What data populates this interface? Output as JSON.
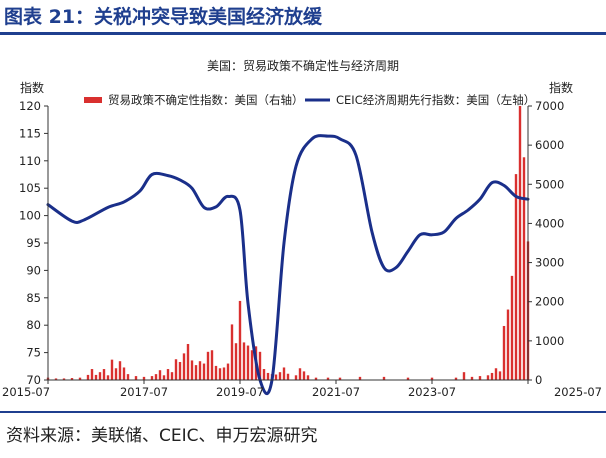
{
  "figure": {
    "title": "图表 21：关税冲突导致美国经济放缓",
    "source": "资料来源：美联储、CEIC、申万宏源研究"
  },
  "colors": {
    "title": "#1f3f8f",
    "bar": "#d9302f",
    "line": "#1a2f8a",
    "axis": "#333333"
  },
  "chart_data": {
    "type": "bar+line",
    "title": "美国：贸易政策不确定性与经济周期",
    "legend_placement": "top",
    "grid": false,
    "left_axis": {
      "label": "指数",
      "range": [
        70,
        120
      ],
      "ticks": [
        70,
        75,
        80,
        85,
        90,
        95,
        100,
        105,
        110,
        115,
        120
      ]
    },
    "right_axis": {
      "label": "指数",
      "range": [
        0,
        7000
      ],
      "ticks": [
        0,
        1000,
        2000,
        3000,
        4000,
        5000,
        6000,
        7000
      ]
    },
    "x_axis": {
      "range": [
        "2015-07",
        "2025-07"
      ],
      "ticks": [
        "2015-07",
        "2017-07",
        "2019-07",
        "2021-07",
        "2023-07",
        "2025-07"
      ]
    },
    "series": [
      {
        "name": "贸易政策不确定性指数：美国（右轴）",
        "type": "bar",
        "axis": "right",
        "points": [
          [
            "2015-07",
            60
          ],
          [
            "2015-09",
            40
          ],
          [
            "2015-11",
            40
          ],
          [
            "2016-01",
            50
          ],
          [
            "2016-03",
            60
          ],
          [
            "2016-05",
            130
          ],
          [
            "2016-06",
            280
          ],
          [
            "2016-07",
            130
          ],
          [
            "2016-08",
            200
          ],
          [
            "2016-09",
            280
          ],
          [
            "2016-10",
            120
          ],
          [
            "2016-11",
            520
          ],
          [
            "2016-12",
            300
          ],
          [
            "2017-01",
            480
          ],
          [
            "2017-02",
            320
          ],
          [
            "2017-03",
            150
          ],
          [
            "2017-05",
            100
          ],
          [
            "2017-07",
            80
          ],
          [
            "2017-09",
            100
          ],
          [
            "2017-10",
            150
          ],
          [
            "2017-11",
            250
          ],
          [
            "2017-12",
            120
          ],
          [
            "2018-01",
            280
          ],
          [
            "2018-02",
            200
          ],
          [
            "2018-03",
            530
          ],
          [
            "2018-04",
            460
          ],
          [
            "2018-05",
            680
          ],
          [
            "2018-06",
            920
          ],
          [
            "2018-07",
            500
          ],
          [
            "2018-08",
            380
          ],
          [
            "2018-09",
            480
          ],
          [
            "2018-10",
            420
          ],
          [
            "2018-11",
            720
          ],
          [
            "2018-12",
            760
          ],
          [
            "2019-01",
            360
          ],
          [
            "2019-02",
            300
          ],
          [
            "2019-03",
            320
          ],
          [
            "2019-04",
            420
          ],
          [
            "2019-05",
            1420
          ],
          [
            "2019-06",
            940
          ],
          [
            "2019-07",
            2020
          ],
          [
            "2019-08",
            960
          ],
          [
            "2019-09",
            880
          ],
          [
            "2019-10",
            760
          ],
          [
            "2019-11",
            860
          ],
          [
            "2019-12",
            720
          ],
          [
            "2020-01",
            280
          ],
          [
            "2020-02",
            180
          ],
          [
            "2020-03",
            150
          ],
          [
            "2020-04",
            140
          ],
          [
            "2020-05",
            200
          ],
          [
            "2020-06",
            320
          ],
          [
            "2020-07",
            160
          ],
          [
            "2020-09",
            120
          ],
          [
            "2020-10",
            300
          ],
          [
            "2020-11",
            220
          ],
          [
            "2020-12",
            120
          ],
          [
            "2021-02",
            60
          ],
          [
            "2021-05",
            60
          ],
          [
            "2021-08",
            60
          ],
          [
            "2022-01",
            80
          ],
          [
            "2022-07",
            80
          ],
          [
            "2023-01",
            60
          ],
          [
            "2023-07",
            60
          ],
          [
            "2024-01",
            60
          ],
          [
            "2024-03",
            200
          ],
          [
            "2024-05",
            80
          ],
          [
            "2024-07",
            100
          ],
          [
            "2024-09",
            120
          ],
          [
            "2024-10",
            180
          ],
          [
            "2024-11",
            300
          ],
          [
            "2024-12",
            220
          ],
          [
            "2025-01",
            1380
          ],
          [
            "2025-02",
            1800
          ],
          [
            "2025-03",
            2660
          ],
          [
            "2025-04",
            5260
          ],
          [
            "2025-05",
            7000
          ],
          [
            "2025-06",
            5690
          ],
          [
            "2025-07",
            3540
          ]
        ]
      },
      {
        "name": "CEIC经济周期先行指数：美国（左轴）",
        "type": "line",
        "axis": "left",
        "points": [
          [
            "2015-07",
            102.0
          ],
          [
            "2016-01",
            99.0
          ],
          [
            "2016-04",
            99.2
          ],
          [
            "2016-10",
            101.5
          ],
          [
            "2017-02",
            102.5
          ],
          [
            "2017-06",
            104.5
          ],
          [
            "2017-09",
            107.5
          ],
          [
            "2018-01",
            107.3
          ],
          [
            "2018-04",
            106.5
          ],
          [
            "2018-07",
            105.0
          ],
          [
            "2018-10",
            101.5
          ],
          [
            "2019-01",
            101.6
          ],
          [
            "2019-04",
            103.5
          ],
          [
            "2019-07",
            101.0
          ],
          [
            "2019-09",
            84.0
          ],
          [
            "2019-12",
            70.0
          ],
          [
            "2020-03",
            70.0
          ],
          [
            "2020-06",
            95.0
          ],
          [
            "2020-09",
            109.0
          ],
          [
            "2021-01",
            114.0
          ],
          [
            "2021-05",
            114.5
          ],
          [
            "2021-08",
            114.0
          ],
          [
            "2021-12",
            111.0
          ],
          [
            "2022-04",
            97.0
          ],
          [
            "2022-07",
            90.5
          ],
          [
            "2022-10",
            90.5
          ],
          [
            "2023-01",
            93.5
          ],
          [
            "2023-04",
            96.5
          ],
          [
            "2023-07",
            96.5
          ],
          [
            "2023-10",
            97.0
          ],
          [
            "2024-01",
            99.5
          ],
          [
            "2024-04",
            101.0
          ],
          [
            "2024-07",
            103.0
          ],
          [
            "2024-10",
            106.0
          ],
          [
            "2025-01",
            105.5
          ],
          [
            "2025-04",
            103.5
          ],
          [
            "2025-07",
            103.0
          ]
        ]
      }
    ]
  }
}
